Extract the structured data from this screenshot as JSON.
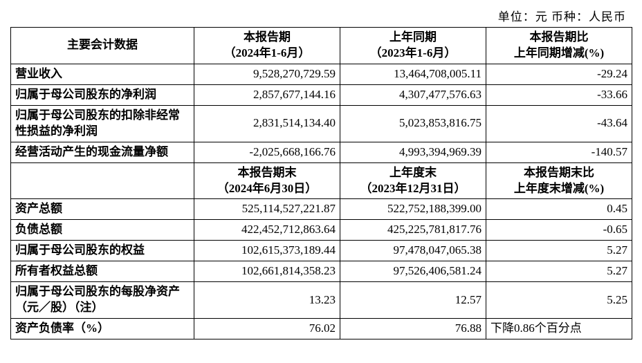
{
  "unit_line": "单位：元    币种：人民币",
  "headers1": {
    "c0": "主要会计数据",
    "c1": "本报告期",
    "c1b": "（2024年1-6月）",
    "c2": "上年同期",
    "c2b": "（2023年1-6月）",
    "c3a": "本报告期比",
    "c3b": "上年同期增减(%)"
  },
  "rows1": [
    {
      "label": "营业收入",
      "v1": "9,528,270,729.59",
      "v2": "13,464,708,005.11",
      "v3": "-29.24"
    },
    {
      "label": "归属于母公司股东的净利润",
      "v1": "2,857,677,144.16",
      "v2": "4,307,477,576.63",
      "v3": "-33.66"
    },
    {
      "label": "归属于母公司股东的扣除非经常性损益的净利润",
      "v1": "2,831,514,134.40",
      "v2": "5,023,853,816.75",
      "v3": "-43.64"
    },
    {
      "label": "经营活动产生的现金流量净额",
      "v1": "-2,025,668,166.76",
      "v2": "4,993,394,969.39",
      "v3": "-140.57"
    }
  ],
  "headers2": {
    "c1": "本报告期末",
    "c1b": "（2024年6月30日）",
    "c2": "上年度末",
    "c2b": "（2023年12月31日）",
    "c3a": "本报告期末比",
    "c3b": "上年度末增减(%)"
  },
  "rows2": [
    {
      "label": "资产总额",
      "v1": "525,114,527,221.87",
      "v2": "522,752,188,399.00",
      "v3": "0.45",
      "v3type": "num"
    },
    {
      "label": "负债总额",
      "v1": "422,452,712,863.64",
      "v2": "425,225,781,817.76",
      "v3": "-0.65",
      "v3type": "num"
    },
    {
      "label": "归属于母公司股东的权益",
      "v1": "102,615,373,189.44",
      "v2": "97,478,047,065.38",
      "v3": "5.27",
      "v3type": "num"
    },
    {
      "label": "所有者权益总额",
      "v1": "102,661,814,358.23",
      "v2": "97,526,406,581.24",
      "v3": "5.27",
      "v3type": "num"
    },
    {
      "label": "归属于母公司股东的每股净资产（元／股）（注）",
      "v1": "13.23",
      "v2": "12.57",
      "v3": "5.25",
      "v3type": "num"
    },
    {
      "label": "资产负债率（%）",
      "v1": "76.02",
      "v2": "76.88",
      "v3": "下降0.86个百分点",
      "v3type": "text"
    }
  ],
  "style": {
    "border_color": "#000000",
    "background": "#ffffff",
    "font_size": 17
  }
}
